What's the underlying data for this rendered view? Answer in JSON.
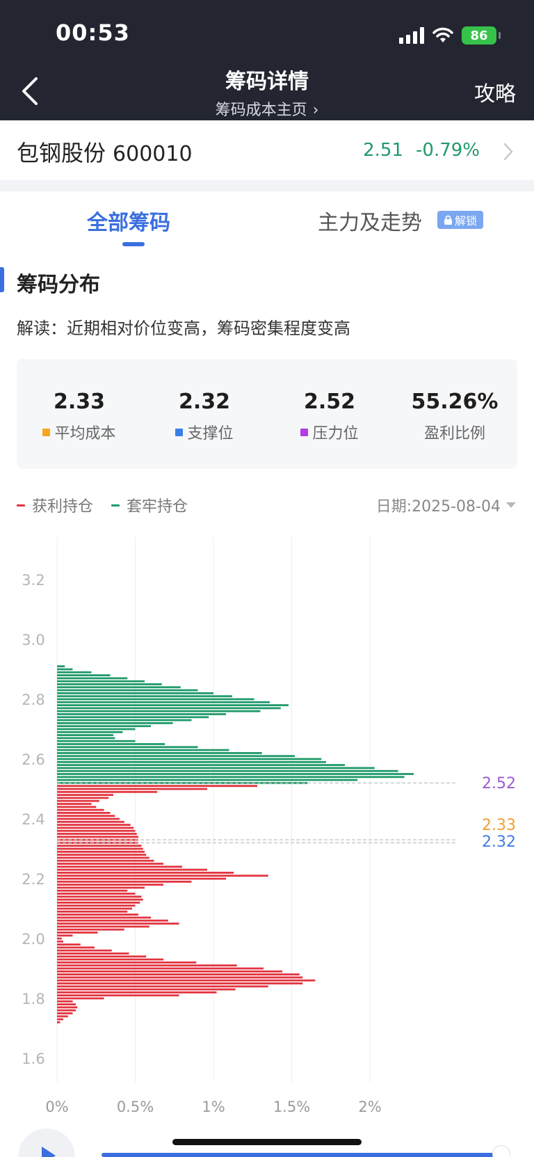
{
  "status_bar": {
    "time": "00:53",
    "battery": "86"
  },
  "header": {
    "title": "筹码详情",
    "subtitle": "筹码成本主页",
    "right_action": "攻略"
  },
  "stock": {
    "name": "包钢股份",
    "code": "600010",
    "price": "2.51",
    "change": "-0.79%",
    "change_color": "#1f9a6a"
  },
  "tabs": [
    {
      "label": "全部筹码",
      "active": true
    },
    {
      "label": "主力及走势",
      "badge": "解锁"
    }
  ],
  "section": {
    "title": "筹码分布",
    "interpretation": "解读：近期相对价位变高，筹码密集程度变高"
  },
  "stats": [
    {
      "value": "2.33",
      "label": "平均成本",
      "color": "#f5a623"
    },
    {
      "value": "2.32",
      "label": "支撑位",
      "color": "#3b7ee6"
    },
    {
      "value": "2.52",
      "label": "压力位",
      "color": "#b53ee0"
    },
    {
      "value": "55.26%",
      "label": "盈利比例"
    }
  ],
  "legend": {
    "profit": {
      "label": "获利持仓",
      "color": "#e2343f"
    },
    "trapped": {
      "label": "套牢持仓",
      "color": "#1f9a6a"
    }
  },
  "date": {
    "label": "日期:2025-08-04"
  },
  "chart_data": {
    "type": "bar",
    "orientation": "horizontal",
    "y_ticks": [
      "3.2",
      "3.0",
      "2.8",
      "2.6",
      "2.4",
      "2.2",
      "2.0",
      "1.8",
      "1.6"
    ],
    "x_ticks": [
      "0%",
      "0.5%",
      "1%",
      "1.5%",
      "2%"
    ],
    "ylim": [
      1.6,
      3.2
    ],
    "xlim": [
      0,
      2.5
    ],
    "price_step": 0.01,
    "series": [
      {
        "name": "套牢持仓",
        "color": "#1f9a6a",
        "points": [
          [
            2.91,
            0.05
          ],
          [
            2.9,
            0.1
          ],
          [
            2.89,
            0.22
          ],
          [
            2.88,
            0.34
          ],
          [
            2.87,
            0.45
          ],
          [
            2.86,
            0.56
          ],
          [
            2.85,
            0.67
          ],
          [
            2.84,
            0.79
          ],
          [
            2.83,
            0.9
          ],
          [
            2.82,
            1.0
          ],
          [
            2.81,
            1.12
          ],
          [
            2.8,
            1.26
          ],
          [
            2.79,
            1.36
          ],
          [
            2.78,
            1.48
          ],
          [
            2.77,
            1.43
          ],
          [
            2.76,
            1.3
          ],
          [
            2.75,
            1.08
          ],
          [
            2.74,
            0.97
          ],
          [
            2.73,
            0.86
          ],
          [
            2.72,
            0.74
          ],
          [
            2.71,
            0.6
          ],
          [
            2.7,
            0.5
          ],
          [
            2.69,
            0.42
          ],
          [
            2.68,
            0.36
          ],
          [
            2.67,
            0.37
          ],
          [
            2.66,
            0.5
          ],
          [
            2.65,
            0.69
          ],
          [
            2.64,
            0.9
          ],
          [
            2.63,
            1.1
          ],
          [
            2.62,
            1.31
          ],
          [
            2.61,
            1.52
          ],
          [
            2.6,
            1.69
          ],
          [
            2.59,
            1.72
          ],
          [
            2.58,
            1.84
          ],
          [
            2.57,
            2.03
          ],
          [
            2.56,
            2.18
          ],
          [
            2.55,
            2.28
          ],
          [
            2.54,
            2.22
          ],
          [
            2.53,
            1.92
          ],
          [
            2.52,
            1.6
          ]
        ]
      },
      {
        "name": "获利持仓",
        "color": "#e2343f",
        "points": [
          [
            2.51,
            1.28
          ],
          [
            2.5,
            0.96
          ],
          [
            2.49,
            0.64
          ],
          [
            2.48,
            0.36
          ],
          [
            2.47,
            0.33
          ],
          [
            2.46,
            0.27
          ],
          [
            2.45,
            0.22
          ],
          [
            2.44,
            0.25
          ],
          [
            2.43,
            0.3
          ],
          [
            2.42,
            0.34
          ],
          [
            2.41,
            0.37
          ],
          [
            2.4,
            0.4
          ],
          [
            2.39,
            0.43
          ],
          [
            2.38,
            0.47
          ],
          [
            2.37,
            0.49
          ],
          [
            2.36,
            0.5
          ],
          [
            2.35,
            0.51
          ],
          [
            2.34,
            0.52
          ],
          [
            2.33,
            0.52
          ],
          [
            2.32,
            0.52
          ],
          [
            2.31,
            0.54
          ],
          [
            2.3,
            0.55
          ],
          [
            2.29,
            0.56
          ],
          [
            2.28,
            0.57
          ],
          [
            2.27,
            0.59
          ],
          [
            2.26,
            0.62
          ],
          [
            2.25,
            0.68
          ],
          [
            2.24,
            0.8
          ],
          [
            2.23,
            0.96
          ],
          [
            2.22,
            1.13
          ],
          [
            2.21,
            1.35
          ],
          [
            2.2,
            1.08
          ],
          [
            2.19,
            0.86
          ],
          [
            2.18,
            0.68
          ],
          [
            2.17,
            0.56
          ],
          [
            2.16,
            0.45
          ],
          [
            2.15,
            0.5
          ],
          [
            2.14,
            0.54
          ],
          [
            2.13,
            0.55
          ],
          [
            2.12,
            0.53
          ],
          [
            2.11,
            0.5
          ],
          [
            2.1,
            0.48
          ],
          [
            2.09,
            0.45
          ],
          [
            2.08,
            0.52
          ],
          [
            2.07,
            0.6
          ],
          [
            2.06,
            0.71
          ],
          [
            2.05,
            0.78
          ],
          [
            2.04,
            0.59
          ],
          [
            2.03,
            0.43
          ],
          [
            2.02,
            0.26
          ],
          [
            2.01,
            0.1
          ],
          [
            2.0,
            0.03
          ],
          [
            1.99,
            0.04
          ],
          [
            1.98,
            0.15
          ],
          [
            1.97,
            0.24
          ],
          [
            1.96,
            0.35
          ],
          [
            1.95,
            0.46
          ],
          [
            1.94,
            0.57
          ],
          [
            1.93,
            0.68
          ],
          [
            1.92,
            0.89
          ],
          [
            1.91,
            1.15
          ],
          [
            1.9,
            1.32
          ],
          [
            1.89,
            1.44
          ],
          [
            1.88,
            1.55
          ],
          [
            1.87,
            1.57
          ],
          [
            1.86,
            1.65
          ],
          [
            1.85,
            1.57
          ],
          [
            1.84,
            1.35
          ],
          [
            1.83,
            1.14
          ],
          [
            1.82,
            1.02
          ],
          [
            1.81,
            0.78
          ],
          [
            1.8,
            0.3
          ],
          [
            1.79,
            0.1
          ],
          [
            1.78,
            0.12
          ],
          [
            1.77,
            0.13
          ],
          [
            1.76,
            0.12
          ],
          [
            1.75,
            0.1
          ],
          [
            1.74,
            0.07
          ],
          [
            1.73,
            0.04
          ],
          [
            1.72,
            0.02
          ]
        ]
      }
    ],
    "reference_lines": [
      {
        "price": 2.52,
        "label": "2.52",
        "color": "#9b5ad6"
      },
      {
        "price": 2.33,
        "label": "2.33",
        "color": "#f0a030"
      },
      {
        "price": 2.32,
        "label": "2.32",
        "color": "#3f7ee0"
      }
    ],
    "grid": true
  }
}
